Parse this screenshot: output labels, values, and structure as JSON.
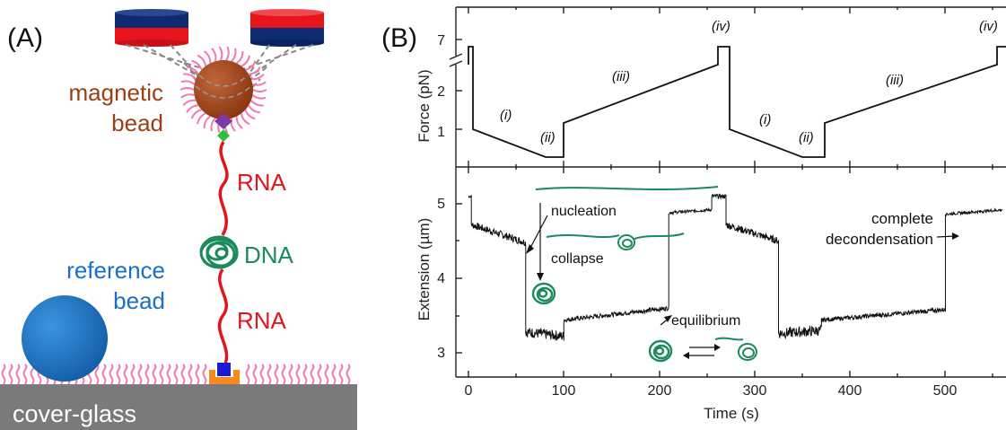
{
  "panel_a": {
    "label": "(A)",
    "magnetic_bead_line1": "magnetic",
    "magnetic_bead_line2": "bead",
    "rna_top": "RNA",
    "dna": "DNA",
    "rna_bottom": "RNA",
    "reference_bead_line1": "reference",
    "reference_bead_line2": "bead",
    "cover_glass": "cover-glass",
    "colors": {
      "magnet_red": "#e8141c",
      "magnet_blue": "#0d2a73",
      "magnetic_bead": "#9a3f14",
      "rna": "#e1151b",
      "dna": "#1c8a5a",
      "reference_bead": "#1a6fc2",
      "surface": "#7a7a7a",
      "pegs": "#f07ab2"
    }
  },
  "panel_b": {
    "label": "(B)",
    "chart_data": [
      {
        "type": "line",
        "ylabel": "Force (pN)",
        "y_ticks": [
          "1",
          "2",
          "7"
        ],
        "x_range": [
          0,
          560
        ],
        "segments": [
          {
            "t": [
              0,
              2,
              2,
              4,
              4,
              75,
              100,
              100,
              255,
              255,
              260
            ],
            "f": [
              0.5,
              0.5,
              7,
              7,
              1,
              0.05,
              0.05,
              1.15,
              2.55,
              7,
              7
            ]
          }
        ],
        "stage_labels": [
          "(i)",
          "(ii)",
          "(iii)",
          "(iv)",
          "(i)",
          "(ii)",
          "(iii)",
          "(iv)"
        ]
      },
      {
        "type": "line",
        "xlabel": "Time (s)",
        "ylabel": "Extension (µm)",
        "x_ticks": [
          "0",
          "100",
          "200",
          "300",
          "400",
          "500"
        ],
        "y_ticks": [
          "3",
          "4",
          "5"
        ],
        "x_range": [
          0,
          560
        ],
        "y_range": [
          2.85,
          5.45
        ],
        "annotations": [
          "nucleation",
          "collapse",
          "equilibrium",
          "complete",
          "decondensation"
        ]
      }
    ]
  }
}
